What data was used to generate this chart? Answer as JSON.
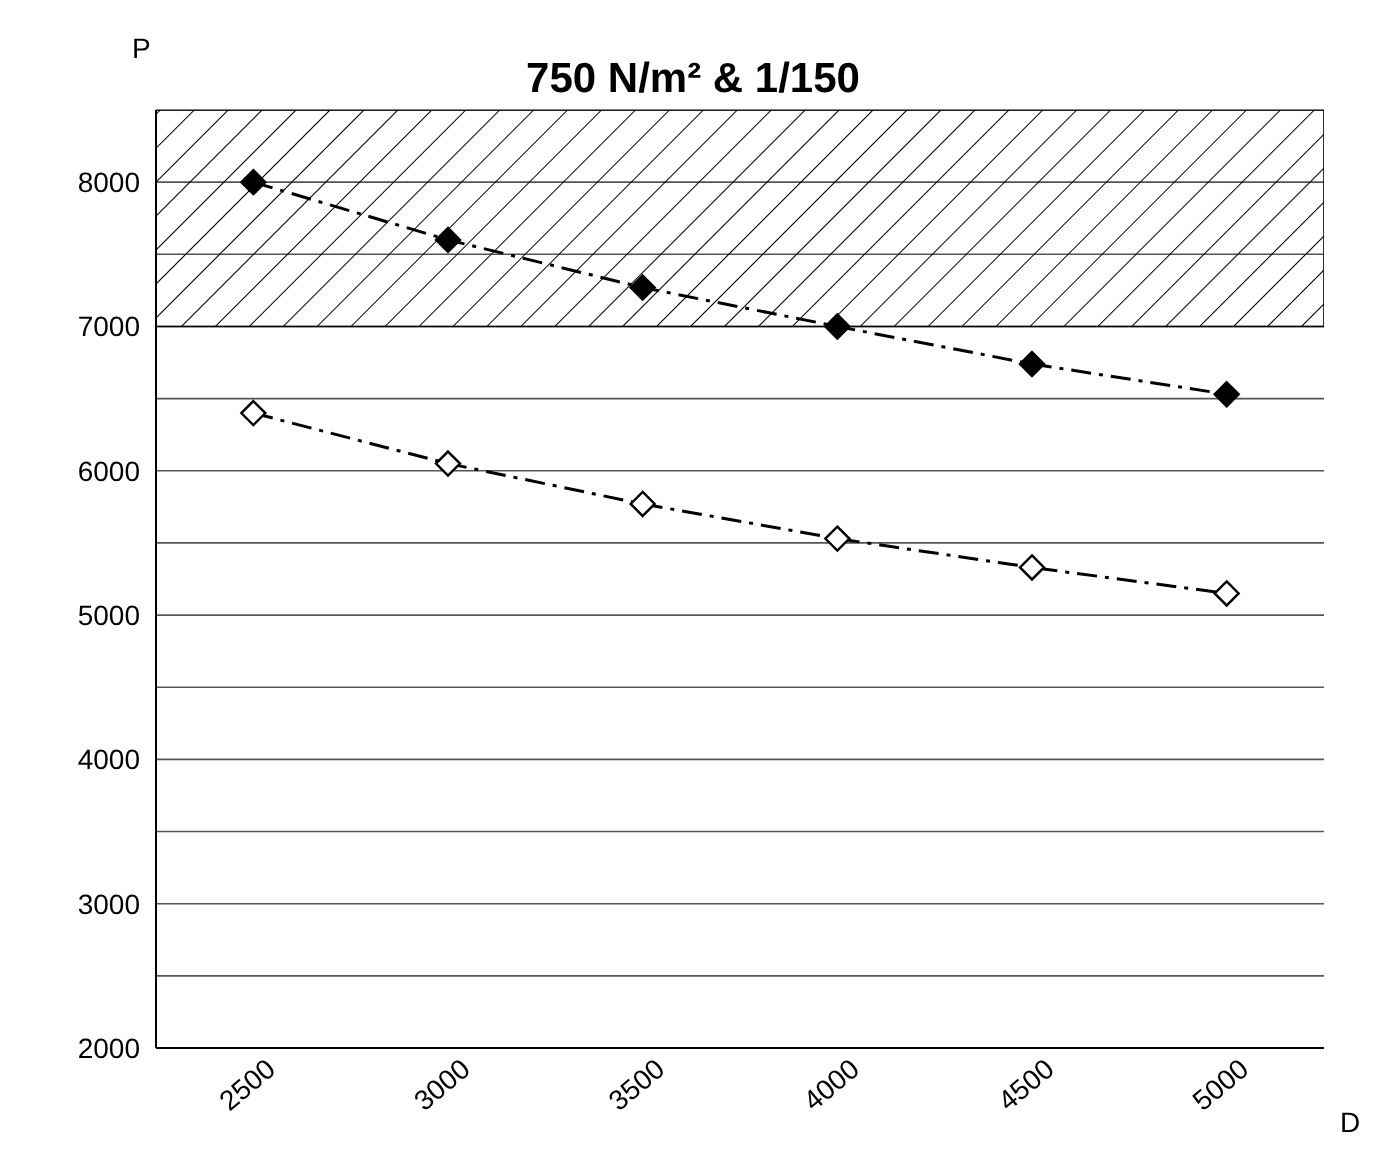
{
  "chart_data": {
    "type": "line",
    "title": "750 N/m² & 1/150",
    "xlabel": "D",
    "ylabel": "P",
    "categories": [
      "2500",
      "3000",
      "3500",
      "4000",
      "4500",
      "5000"
    ],
    "series": [
      {
        "color": "#000000",
        "values": [
          8000,
          7600,
          7270,
          7000,
          6740,
          6530
        ]
      },
      {
        "color": "#000000",
        "values": [
          6400,
          6050,
          5770,
          5530,
          5330,
          5150
        ]
      }
    ],
    "ylim": [
      2000,
      8500
    ],
    "yticks": [
      2000,
      {
        "value": 2500,
        "label": null
      },
      3000,
      {
        "value": 3500,
        "label": null
      },
      4000,
      {
        "value": 4500,
        "label": null
      },
      5000,
      {
        "value": 5500,
        "label": null
      },
      6000,
      {
        "value": 6500,
        "label": null
      },
      7000,
      {
        "value": 7500,
        "label": null
      },
      8000,
      {
        "value": 8500,
        "label": null
      }
    ],
    "bands": [
      {
        "axis": "y",
        "from": 7000,
        "to": 8500,
        "color": "#000000"
      }
    ],
    "grid": "y",
    "marker": "diamond",
    "line_style": "dashed"
  }
}
